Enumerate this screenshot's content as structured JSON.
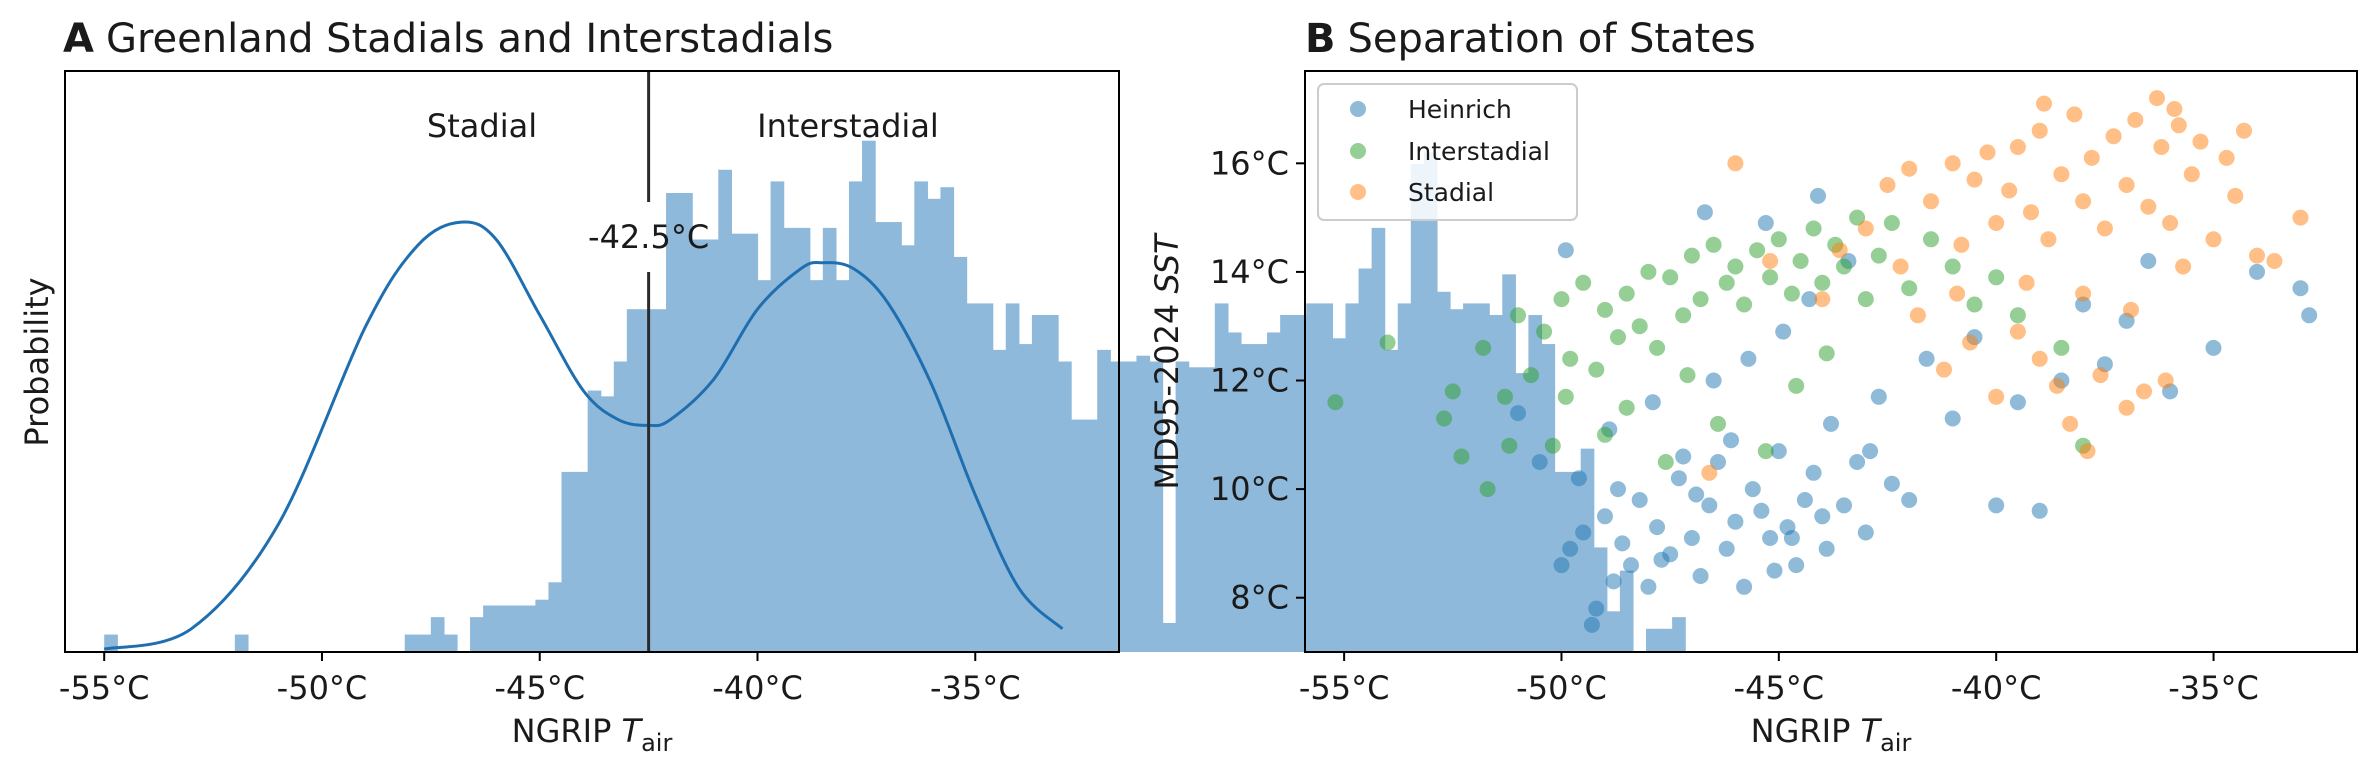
{
  "colors": {
    "heinrich": "#1f77b4",
    "interstadial": "#2ca02c",
    "stadial": "#ff7f0e",
    "hist": "#8fb9da",
    "kde": "#1f6fb0",
    "threshold": "#2b2b2b"
  },
  "panel_a": {
    "letter": "A",
    "title": "Greenland Stadials and Interstadials",
    "xlabel_main": "NGRIP ",
    "xlabel_var": "T",
    "xlabel_sub": "air",
    "ylabel": "Probability",
    "label_stadial": "Stadial",
    "label_interstadial": "Interstadial",
    "threshold_label": "-42.5°C",
    "xticks": [
      "-55°C",
      "-50°C",
      "-45°C",
      "-40°C",
      "-35°C"
    ]
  },
  "panel_b": {
    "letter": "B",
    "title": "Separation of States",
    "xlabel_main": "NGRIP ",
    "xlabel_var": "T",
    "xlabel_sub": "air",
    "ylabel_main": "MD95-2024 ",
    "ylabel_var": "SST",
    "xticks": [
      "-55°C",
      "-50°C",
      "-45°C",
      "-40°C",
      "-35°C"
    ],
    "yticks": [
      "8°C",
      "10°C",
      "12°C",
      "14°C",
      "16°C"
    ],
    "legend": [
      "Heinrich",
      "Interstadial",
      "Stadial"
    ]
  },
  "chart_data": [
    {
      "type": "bar",
      "subtype": "histogram+kde",
      "title": "Greenland Stadials and Interstadials",
      "xlabel": "NGRIP T_air",
      "ylabel": "Probability",
      "xlim": [
        -55.9,
        -31.7
      ],
      "ylim": [
        0,
        1.0
      ],
      "bin_width": 0.3,
      "x_start": -55.0,
      "hist": [
        0.03,
        0,
        0,
        0,
        0,
        0,
        0,
        0,
        0,
        0,
        0.03,
        0,
        0,
        0,
        0,
        0,
        0,
        0,
        0,
        0,
        0,
        0,
        0,
        0.03,
        0.03,
        0.06,
        0.03,
        0,
        0.06,
        0.08,
        0.08,
        0.08,
        0.08,
        0.09,
        0.12,
        0.31,
        0.31,
        0.45,
        0.44,
        0.5,
        0.59,
        0.59,
        0.59,
        0.79,
        0.79,
        0.71,
        0.71,
        0.83,
        0.72,
        0.72,
        0.64,
        0.81,
        0.73,
        0.73,
        0.64,
        0.73,
        0.64,
        0.81,
        0.88,
        0.74,
        0.74,
        0.7,
        0.81,
        0.78,
        0.8,
        0.68,
        0.6,
        0.6,
        0.52,
        0.6,
        0.53,
        0.58,
        0.58,
        0.5,
        0.4,
        0.4,
        0.52,
        0.5,
        0.5,
        0.51,
        0.5,
        0.05,
        0.5,
        0.49,
        0.49,
        0.6,
        0.55,
        0.53,
        0.53,
        0.55,
        0.58,
        0.58,
        0.6,
        0.6,
        0.54,
        0.6,
        0.66,
        0.73,
        0.52,
        0.6,
        0.84,
        0.86,
        0.62,
        0.59,
        0.6,
        0.6,
        0.58,
        0.65,
        0.48,
        0.58,
        0.53,
        0.31,
        0.31,
        0.35,
        0.18,
        0.07,
        0.14,
        0,
        0.04,
        0.04,
        0.06,
        0
      ],
      "kde": [
        [
          -55.0,
          0.005
        ],
        [
          -53.0,
          0.04
        ],
        [
          -51.0,
          0.22
        ],
        [
          -49.0,
          0.56
        ],
        [
          -47.8,
          0.7
        ],
        [
          -46.8,
          0.74
        ],
        [
          -46.0,
          0.71
        ],
        [
          -45.0,
          0.58
        ],
        [
          -44.0,
          0.45
        ],
        [
          -43.2,
          0.4
        ],
        [
          -42.5,
          0.39
        ],
        [
          -42.0,
          0.4
        ],
        [
          -41.0,
          0.47
        ],
        [
          -40.0,
          0.59
        ],
        [
          -39.0,
          0.66
        ],
        [
          -38.5,
          0.67
        ],
        [
          -37.8,
          0.66
        ],
        [
          -37.0,
          0.6
        ],
        [
          -36.0,
          0.46
        ],
        [
          -35.0,
          0.27
        ],
        [
          -34.0,
          0.11
        ],
        [
          -33.0,
          0.04
        ]
      ],
      "threshold": -42.5
    },
    {
      "type": "scatter",
      "title": "Separation of States",
      "xlabel": "NGRIP T_air",
      "ylabel": "MD95-2024 SST",
      "xlim": [
        -55.9,
        -31.7
      ],
      "ylim": [
        7.0,
        17.7
      ],
      "legend_position": "upper-left",
      "series": [
        {
          "name": "Heinrich",
          "points": [
            [
              -50,
              8.6
            ],
            [
              -49.8,
              8.9
            ],
            [
              -49.5,
              9.2
            ],
            [
              -49.2,
              7.8
            ],
            [
              -49,
              9.5
            ],
            [
              -48.8,
              8.3
            ],
            [
              -48.6,
              9
            ],
            [
              -48.4,
              8.6
            ],
            [
              -48.2,
              9.8
            ],
            [
              -48,
              8.2
            ],
            [
              -47.8,
              9.3
            ],
            [
              -47.5,
              8.8
            ],
            [
              -47.3,
              10.2
            ],
            [
              -47,
              9.1
            ],
            [
              -46.8,
              8.4
            ],
            [
              -46.6,
              9.7
            ],
            [
              -46.4,
              10.5
            ],
            [
              -46.2,
              8.9
            ],
            [
              -46,
              9.4
            ],
            [
              -45.8,
              8.2
            ],
            [
              -45.6,
              10
            ],
            [
              -45.4,
              9.6
            ],
            [
              -45.2,
              9.1
            ],
            [
              -45,
              10.7
            ],
            [
              -44.8,
              9.3
            ],
            [
              -44.6,
              8.6
            ],
            [
              -44.4,
              9.8
            ],
            [
              -44.2,
              10.3
            ],
            [
              -44,
              9.5
            ],
            [
              -43.8,
              11.2
            ],
            [
              -43.5,
              9.7
            ],
            [
              -43.2,
              10.5
            ],
            [
              -43,
              9.2
            ],
            [
              -42.7,
              11.7
            ],
            [
              -42.4,
              10.1
            ],
            [
              -42,
              9.8
            ],
            [
              -41.6,
              12.4
            ],
            [
              -41,
              11.3
            ],
            [
              -40.5,
              12.8
            ],
            [
              -40,
              9.7
            ],
            [
              -39.5,
              11.6
            ],
            [
              -39,
              9.6
            ],
            [
              -38.5,
              12
            ],
            [
              -38,
              13.4
            ],
            [
              -37.5,
              12.3
            ],
            [
              -37,
              13.1
            ],
            [
              -36.5,
              14.2
            ],
            [
              -36,
              11.8
            ],
            [
              -35,
              12.6
            ],
            [
              -34,
              14
            ],
            [
              -33,
              13.7
            ],
            [
              -32.8,
              13.2
            ],
            [
              -51,
              11.4
            ],
            [
              -50.5,
              10.5
            ],
            [
              -49.6,
              10.2
            ],
            [
              -48.9,
              11.1
            ],
            [
              -47.9,
              11.6
            ],
            [
              -46.5,
              12
            ],
            [
              -45.7,
              12.4
            ],
            [
              -44.9,
              12.9
            ],
            [
              -44.3,
              13.5
            ],
            [
              -43.4,
              14.2
            ],
            [
              -45.3,
              14.9
            ],
            [
              -46.7,
              15.1
            ],
            [
              -44.1,
              15.4
            ],
            [
              -49.9,
              14.4
            ],
            [
              -47.2,
              10.6
            ],
            [
              -46.1,
              10.9
            ],
            [
              -48.7,
              10
            ],
            [
              -45.1,
              8.5
            ],
            [
              -49.3,
              7.5
            ],
            [
              -47.7,
              8.7
            ],
            [
              -46.9,
              9.9
            ],
            [
              -44.7,
              9.1
            ],
            [
              -43.9,
              8.9
            ],
            [
              -42.9,
              10.7
            ]
          ]
        },
        {
          "name": "Interstadial",
          "points": [
            [
              -55.2,
              11.6
            ],
            [
              -54,
              12.7
            ],
            [
              -52.7,
              11.3
            ],
            [
              -52.5,
              11.8
            ],
            [
              -52.3,
              10.6
            ],
            [
              -51.8,
              12.6
            ],
            [
              -51.7,
              10
            ],
            [
              -51.3,
              11.7
            ],
            [
              -51.2,
              10.8
            ],
            [
              -51,
              13.2
            ],
            [
              -50.7,
              12.1
            ],
            [
              -50.4,
              12.9
            ],
            [
              -50,
              13.5
            ],
            [
              -49.8,
              12.4
            ],
            [
              -49.5,
              13.8
            ],
            [
              -49.2,
              12.2
            ],
            [
              -49,
              13.3
            ],
            [
              -48.7,
              12.8
            ],
            [
              -48.5,
              13.6
            ],
            [
              -48.2,
              13
            ],
            [
              -48,
              14
            ],
            [
              -47.8,
              12.6
            ],
            [
              -47.5,
              13.9
            ],
            [
              -47.2,
              13.2
            ],
            [
              -47,
              14.3
            ],
            [
              -46.8,
              13.5
            ],
            [
              -46.5,
              14.5
            ],
            [
              -46.2,
              13.8
            ],
            [
              -46,
              14.1
            ],
            [
              -45.8,
              13.4
            ],
            [
              -45.5,
              14.4
            ],
            [
              -45.2,
              13.9
            ],
            [
              -45,
              14.6
            ],
            [
              -44.7,
              13.6
            ],
            [
              -44.5,
              14.2
            ],
            [
              -44.2,
              14.8
            ],
            [
              -44,
              13.8
            ],
            [
              -43.7,
              14.5
            ],
            [
              -43.5,
              14.1
            ],
            [
              -43.2,
              15
            ],
            [
              -43,
              13.5
            ],
            [
              -42.7,
              14.3
            ],
            [
              -42.4,
              14.9
            ],
            [
              -42,
              13.7
            ],
            [
              -41.5,
              14.6
            ],
            [
              -41,
              14.1
            ],
            [
              -40.5,
              13.4
            ],
            [
              -40,
              13.9
            ],
            [
              -39.5,
              13.2
            ],
            [
              -38.5,
              12.6
            ],
            [
              -38,
              10.8
            ],
            [
              -49,
              11
            ],
            [
              -48.5,
              11.5
            ],
            [
              -47.6,
              10.5
            ],
            [
              -46.4,
              11.2
            ],
            [
              -45.3,
              10.7
            ],
            [
              -44.6,
              11.9
            ],
            [
              -43.9,
              12.5
            ],
            [
              -47.1,
              12.1
            ],
            [
              -50.2,
              10.8
            ],
            [
              -49.9,
              11.7
            ]
          ]
        },
        {
          "name": "Stadial",
          "points": [
            [
              -46,
              16
            ],
            [
              -45.2,
              14.2
            ],
            [
              -44,
              13.5
            ],
            [
              -43,
              14.8
            ],
            [
              -42.5,
              15.6
            ],
            [
              -42,
              15.9
            ],
            [
              -41.5,
              15.3
            ],
            [
              -41,
              16
            ],
            [
              -40.8,
              14.5
            ],
            [
              -40.5,
              15.7
            ],
            [
              -40.2,
              16.2
            ],
            [
              -40,
              14.9
            ],
            [
              -39.7,
              15.5
            ],
            [
              -39.5,
              16.3
            ],
            [
              -39.2,
              15.1
            ],
            [
              -39,
              16.6
            ],
            [
              -38.8,
              14.6
            ],
            [
              -38.5,
              15.8
            ],
            [
              -38.2,
              16.9
            ],
            [
              -38,
              15.3
            ],
            [
              -37.8,
              16.1
            ],
            [
              -37.5,
              14.8
            ],
            [
              -37.3,
              16.5
            ],
            [
              -37,
              15.6
            ],
            [
              -36.8,
              16.8
            ],
            [
              -36.5,
              15.2
            ],
            [
              -36.2,
              16.3
            ],
            [
              -36,
              14.9
            ],
            [
              -35.8,
              16.7
            ],
            [
              -35.5,
              15.8
            ],
            [
              -35.3,
              16.4
            ],
            [
              -35,
              14.6
            ],
            [
              -34.7,
              16.1
            ],
            [
              -34.5,
              15.4
            ],
            [
              -34.3,
              16.6
            ],
            [
              -34,
              14.3
            ],
            [
              -33.6,
              14.2
            ],
            [
              -33,
              15
            ],
            [
              -41.8,
              13.2
            ],
            [
              -41.2,
              12.2
            ],
            [
              -40.6,
              12.7
            ],
            [
              -40,
              11.7
            ],
            [
              -39.5,
              12.9
            ],
            [
              -39,
              12.4
            ],
            [
              -38.6,
              11.9
            ],
            [
              -38,
              13.6
            ],
            [
              -37.6,
              12.1
            ],
            [
              -37,
              11.5
            ],
            [
              -36.6,
              11.8
            ],
            [
              -36.1,
              12
            ],
            [
              -38.3,
              11.2
            ],
            [
              -37.9,
              10.7
            ],
            [
              -46.6,
              10.3
            ],
            [
              -42.2,
              14.1
            ],
            [
              -39.3,
              13.8
            ],
            [
              -36.9,
              13.3
            ],
            [
              -35.7,
              14.1
            ],
            [
              -43.6,
              14.4
            ],
            [
              -40.9,
              13.6
            ],
            [
              -38.9,
              17.1
            ],
            [
              -36.3,
              17.2
            ],
            [
              -35.9,
              17.0
            ]
          ]
        }
      ]
    }
  ]
}
